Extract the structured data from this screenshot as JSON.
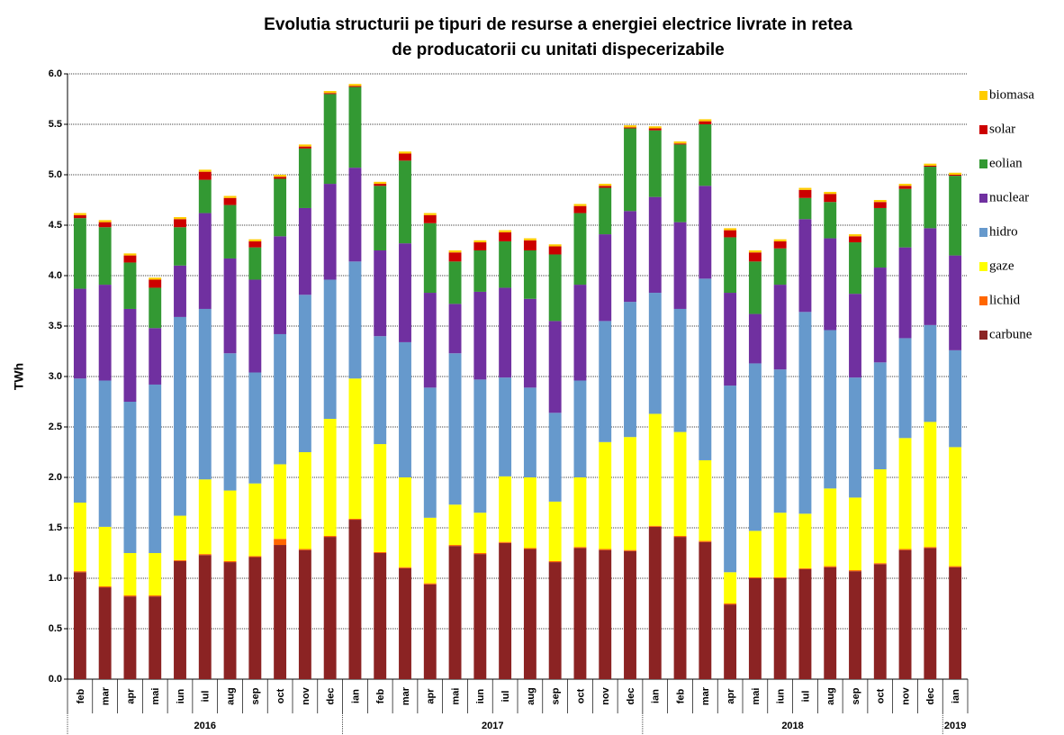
{
  "chart_data": {
    "type": "stacked_bar",
    "title": [
      "Evolutia structurii pe tipuri de resurse a energiei electrice livrate in retea",
      "de producatorii cu unitati dispecerizabile"
    ],
    "y_label": "TWh",
    "categories": [
      "feb",
      "mar",
      "apr",
      "mai",
      "iun",
      "iul",
      "aug",
      "sep",
      "oct",
      "nov",
      "dec",
      "ian",
      "feb",
      "mar",
      "apr",
      "mai",
      "iun",
      "iul",
      "aug",
      "sep",
      "oct",
      "nov",
      "dec",
      "ian",
      "feb",
      "mar",
      "apr",
      "mai",
      "iun",
      "iul",
      "aug",
      "sep",
      "oct",
      "nov",
      "dec",
      "ian"
    ],
    "groups": [
      {
        "label": "2016",
        "span": 11
      },
      {
        "label": "2017",
        "span": 12
      },
      {
        "label": "2018",
        "span": 12
      },
      {
        "label": "2019",
        "span": 1
      }
    ],
    "ylim": [
      0,
      6
    ],
    "yticks": [
      {
        "value": 0,
        "label": "0.0"
      },
      {
        "value": 0.5,
        "label": "0.5"
      },
      {
        "value": 1,
        "label": "1.0"
      },
      {
        "value": 1.5,
        "label": "1.5"
      },
      {
        "value": 2,
        "label": "2.0"
      },
      {
        "value": 2.5,
        "label": "2.5"
      },
      {
        "value": 3,
        "label": "3.0"
      },
      {
        "value": 3.5,
        "label": "3.5"
      },
      {
        "value": 4,
        "label": "4.0"
      },
      {
        "value": 4.5,
        "label": "4.5"
      },
      {
        "value": 5,
        "label": "5.0"
      },
      {
        "value": 5.5,
        "label": "5.5"
      },
      {
        "value": 6,
        "label": "6.0"
      }
    ],
    "grid": true,
    "legend": "right",
    "series": [
      {
        "name": "carbune",
        "color": "#8b2323",
        "values": [
          1.06,
          0.91,
          0.82,
          0.82,
          1.17,
          1.23,
          1.16,
          1.21,
          1.33,
          1.28,
          1.41,
          1.58,
          1.25,
          1.1,
          0.94,
          1.32,
          1.24,
          1.35,
          1.29,
          1.16,
          1.3,
          1.28,
          1.27,
          1.51,
          1.41,
          1.36,
          0.74,
          1.0,
          1.0,
          1.09,
          1.11,
          1.07,
          1.14,
          1.28,
          1.3,
          1.11
        ]
      },
      {
        "name": "lichid",
        "color": "#ff6600",
        "values": [
          0.01,
          0.01,
          0.01,
          0.01,
          0.01,
          0.01,
          0.01,
          0.01,
          0.06,
          0.01,
          0.01,
          0.01,
          0.01,
          0.01,
          0.01,
          0.01,
          0.01,
          0.01,
          0.01,
          0.01,
          0.01,
          0.01,
          0.01,
          0.01,
          0.01,
          0.01,
          0.01,
          0.01,
          0.01,
          0.01,
          0.01,
          0.01,
          0.01,
          0.01,
          0.01,
          0.01
        ]
      },
      {
        "name": "gaze",
        "color": "#ffff00",
        "values": [
          0.68,
          0.59,
          0.42,
          0.42,
          0.44,
          0.74,
          0.7,
          0.72,
          0.74,
          0.96,
          1.16,
          1.39,
          1.07,
          0.89,
          0.65,
          0.4,
          0.4,
          0.65,
          0.7,
          0.59,
          0.69,
          1.06,
          1.12,
          1.11,
          1.03,
          0.8,
          0.31,
          0.46,
          0.64,
          0.54,
          0.77,
          0.72,
          0.93,
          1.1,
          1.24,
          1.18
        ]
      },
      {
        "name": "hidro",
        "color": "#6699cc",
        "values": [
          1.23,
          1.45,
          1.5,
          1.67,
          1.97,
          1.69,
          1.36,
          1.1,
          1.29,
          1.56,
          1.38,
          1.16,
          1.07,
          1.34,
          1.29,
          1.5,
          1.32,
          0.98,
          0.89,
          0.88,
          0.96,
          1.2,
          1.34,
          1.2,
          1.22,
          1.8,
          1.85,
          1.66,
          1.42,
          2.0,
          1.57,
          1.19,
          1.06,
          0.99,
          0.96,
          0.96
        ]
      },
      {
        "name": "nuclear",
        "color": "#7030a0",
        "values": [
          0.89,
          0.95,
          0.92,
          0.56,
          0.51,
          0.95,
          0.94,
          0.92,
          0.97,
          0.86,
          0.95,
          0.93,
          0.85,
          0.98,
          0.94,
          0.49,
          0.87,
          0.89,
          0.88,
          0.91,
          0.95,
          0.86,
          0.9,
          0.95,
          0.86,
          0.92,
          0.92,
          0.49,
          0.84,
          0.92,
          0.91,
          0.83,
          0.94,
          0.9,
          0.96,
          0.94
        ]
      },
      {
        "name": "eolian",
        "color": "#339933",
        "values": [
          0.7,
          0.57,
          0.46,
          0.4,
          0.38,
          0.33,
          0.53,
          0.32,
          0.57,
          0.59,
          0.89,
          0.8,
          0.64,
          0.82,
          0.69,
          0.42,
          0.41,
          0.46,
          0.48,
          0.66,
          0.71,
          0.46,
          0.82,
          0.66,
          0.77,
          0.61,
          0.55,
          0.52,
          0.36,
          0.21,
          0.36,
          0.51,
          0.59,
          0.58,
          0.61,
          0.79
        ]
      },
      {
        "name": "solar",
        "color": "#cc0000",
        "values": [
          0.03,
          0.05,
          0.07,
          0.08,
          0.08,
          0.08,
          0.07,
          0.06,
          0.02,
          0.02,
          0.01,
          0.01,
          0.02,
          0.07,
          0.08,
          0.09,
          0.08,
          0.09,
          0.1,
          0.08,
          0.07,
          0.02,
          0.01,
          0.02,
          0.01,
          0.03,
          0.07,
          0.09,
          0.07,
          0.08,
          0.08,
          0.06,
          0.06,
          0.03,
          0.01,
          0.01
        ]
      },
      {
        "name": "biomasa",
        "color": "#ffcc00",
        "values": [
          0.02,
          0.02,
          0.02,
          0.02,
          0.02,
          0.02,
          0.02,
          0.02,
          0.02,
          0.02,
          0.02,
          0.02,
          0.02,
          0.02,
          0.02,
          0.02,
          0.02,
          0.02,
          0.02,
          0.02,
          0.02,
          0.02,
          0.02,
          0.02,
          0.02,
          0.02,
          0.02,
          0.02,
          0.02,
          0.02,
          0.02,
          0.02,
          0.02,
          0.02,
          0.02,
          0.02
        ]
      }
    ]
  }
}
